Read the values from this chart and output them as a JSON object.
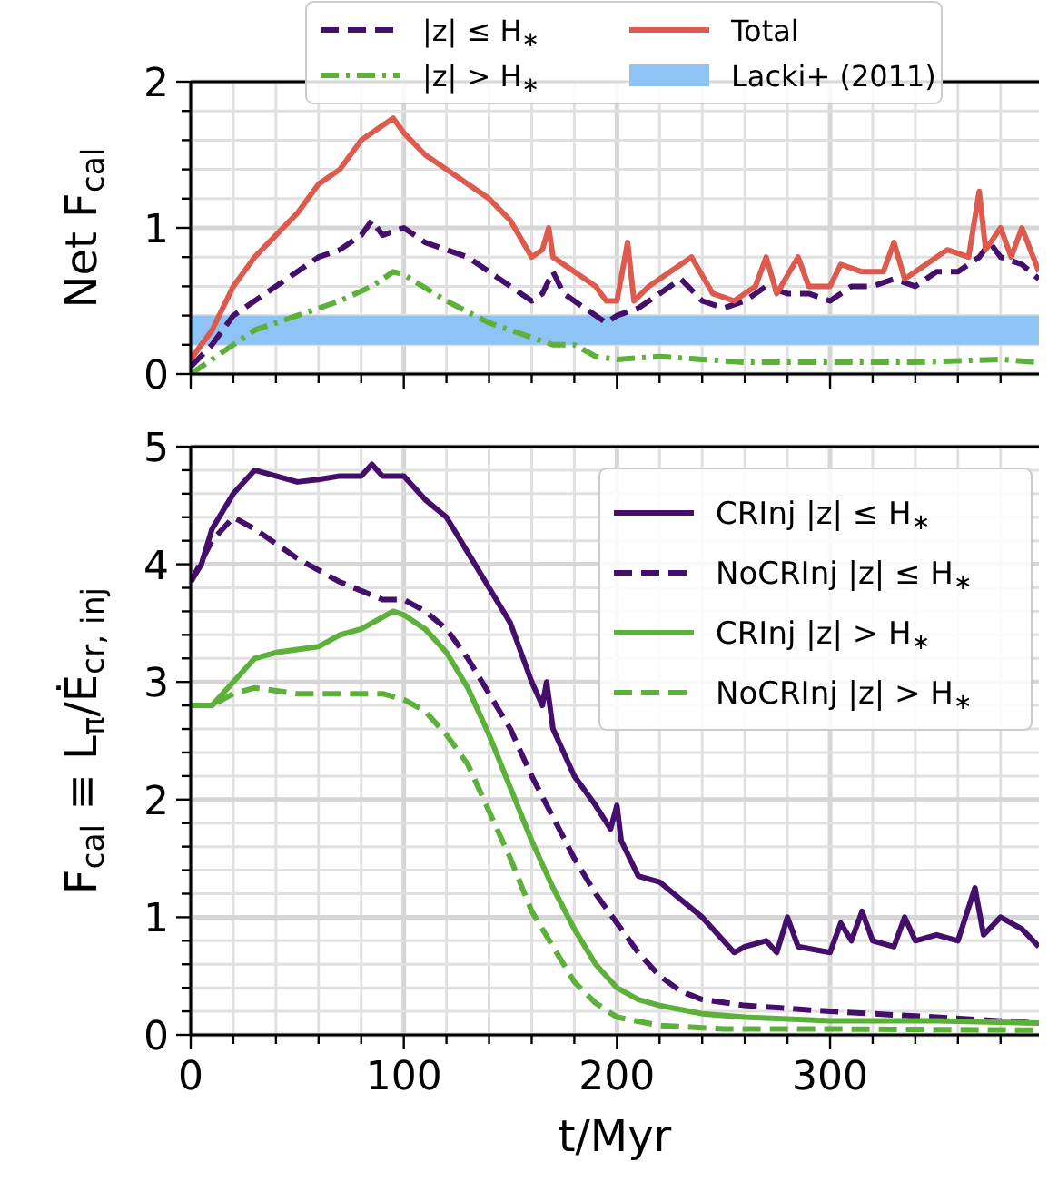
{
  "chart_data": [
    {
      "type": "line",
      "ylabel": "Net F$_{cal}$",
      "xlim": [
        0,
        398
      ],
      "ylim": [
        0,
        2
      ],
      "xticks": [
        0,
        {
          "value": 20,
          "label": null
        },
        {
          "value": 40,
          "label": null
        },
        {
          "value": 60,
          "label": null
        },
        {
          "value": 80,
          "label": null
        },
        100,
        {
          "value": 120,
          "label": null
        },
        {
          "value": 140,
          "label": null
        },
        {
          "value": 160,
          "label": null
        },
        {
          "value": 180,
          "label": null
        },
        200,
        {
          "value": 220,
          "label": null
        },
        {
          "value": 240,
          "label": null
        },
        {
          "value": 260,
          "label": null
        },
        {
          "value": 280,
          "label": null
        },
        300,
        {
          "value": 320,
          "label": null
        },
        {
          "value": 340,
          "label": null
        },
        {
          "value": 360,
          "label": null
        },
        {
          "value": 380,
          "label": null
        }
      ],
      "yticks": [
        0,
        {
          "value": 0.2,
          "label": null
        },
        {
          "value": 0.4,
          "label": null
        },
        {
          "value": 0.6,
          "label": null
        },
        {
          "value": 0.8,
          "label": null
        },
        1,
        {
          "value": 1.2,
          "label": null
        },
        {
          "value": 1.4,
          "label": null
        },
        {
          "value": 1.6,
          "label": null
        },
        {
          "value": 1.8,
          "label": null
        },
        2
      ],
      "tick_labels": "y",
      "grid": true,
      "legend": "top",
      "series": [
        {
          "name": "|z| ≤ H$_{∗}$",
          "color": "#440f6b",
          "line_style": "dashed",
          "x": [
            0,
            10,
            20,
            30,
            50,
            60,
            70,
            80,
            85,
            90,
            100,
            110,
            130,
            150,
            160,
            165,
            170,
            175,
            185,
            195,
            200,
            210,
            220,
            230,
            240,
            250,
            260,
            270,
            280,
            290,
            300,
            310,
            320,
            330,
            340,
            350,
            360,
            370,
            375,
            380,
            390,
            398
          ],
          "values": [
            0.05,
            0.2,
            0.4,
            0.5,
            0.7,
            0.8,
            0.85,
            0.95,
            1.05,
            0.95,
            1.0,
            0.9,
            0.8,
            0.6,
            0.5,
            0.55,
            0.7,
            0.55,
            0.45,
            0.35,
            0.4,
            0.45,
            0.55,
            0.65,
            0.5,
            0.45,
            0.5,
            0.6,
            0.55,
            0.55,
            0.5,
            0.6,
            0.6,
            0.65,
            0.6,
            0.7,
            0.7,
            0.8,
            0.9,
            0.8,
            0.75,
            0.65
          ]
        },
        {
          "name": "|z| > H$_{∗}$",
          "color": "#5db03a",
          "line_style": "dashdot",
          "x": [
            0,
            10,
            20,
            30,
            50,
            70,
            85,
            95,
            100,
            120,
            140,
            160,
            170,
            180,
            190,
            200,
            220,
            240,
            260,
            300,
            340,
            380,
            398
          ],
          "values": [
            0,
            0.1,
            0.2,
            0.3,
            0.4,
            0.5,
            0.6,
            0.7,
            0.68,
            0.5,
            0.35,
            0.25,
            0.2,
            0.2,
            0.12,
            0.1,
            0.12,
            0.1,
            0.08,
            0.08,
            0.08,
            0.1,
            0.08
          ]
        },
        {
          "name": "Total",
          "color": "#dc5a4e",
          "line_style": "solid",
          "x": [
            0,
            10,
            20,
            30,
            40,
            50,
            60,
            70,
            80,
            90,
            95,
            100,
            110,
            120,
            130,
            140,
            150,
            160,
            165,
            168,
            170,
            180,
            190,
            195,
            200,
            205,
            208,
            215,
            225,
            235,
            245,
            255,
            265,
            270,
            275,
            285,
            290,
            300,
            305,
            315,
            325,
            330,
            335,
            345,
            355,
            365,
            370,
            373,
            380,
            385,
            390,
            398
          ],
          "values": [
            0.1,
            0.3,
            0.6,
            0.8,
            0.95,
            1.1,
            1.3,
            1.4,
            1.6,
            1.7,
            1.75,
            1.65,
            1.5,
            1.4,
            1.3,
            1.2,
            1.05,
            0.8,
            0.85,
            1.0,
            0.8,
            0.7,
            0.6,
            0.5,
            0.5,
            0.9,
            0.5,
            0.6,
            0.7,
            0.8,
            0.55,
            0.5,
            0.6,
            0.8,
            0.55,
            0.8,
            0.6,
            0.6,
            0.75,
            0.7,
            0.7,
            0.9,
            0.65,
            0.75,
            0.85,
            0.8,
            1.25,
            0.85,
            1.0,
            0.8,
            1.0,
            0.7
          ]
        }
      ],
      "bands": [
        {
          "axis": "y",
          "from": 0.2,
          "to": 0.4,
          "label": "Lacki+ (2011)",
          "color": "#8ec4f5"
        }
      ]
    },
    {
      "type": "line",
      "xlabel": "t/Myr",
      "ylabel": "F$_{cal}$ ≡ L$_{π}$/Ė$_{cr, inj}$",
      "xlim": [
        0,
        398
      ],
      "ylim": [
        0,
        5
      ],
      "xticks": [
        0,
        {
          "value": 20,
          "label": null
        },
        {
          "value": 40,
          "label": null
        },
        {
          "value": 60,
          "label": null
        },
        {
          "value": 80,
          "label": null
        },
        100,
        {
          "value": 120,
          "label": null
        },
        {
          "value": 140,
          "label": null
        },
        {
          "value": 160,
          "label": null
        },
        {
          "value": 180,
          "label": null
        },
        200,
        {
          "value": 220,
          "label": null
        },
        {
          "value": 240,
          "label": null
        },
        {
          "value": 260,
          "label": null
        },
        {
          "value": 280,
          "label": null
        },
        300,
        {
          "value": 320,
          "label": null
        },
        {
          "value": 340,
          "label": null
        },
        {
          "value": 360,
          "label": null
        },
        {
          "value": 380,
          "label": null
        }
      ],
      "yticks": [
        0,
        {
          "value": 0.2,
          "label": null
        },
        {
          "value": 0.4,
          "label": null
        },
        {
          "value": 0.6,
          "label": null
        },
        {
          "value": 0.8,
          "label": null
        },
        1,
        {
          "value": 1.2,
          "label": null
        },
        {
          "value": 1.4,
          "label": null
        },
        {
          "value": 1.6,
          "label": null
        },
        {
          "value": 1.8,
          "label": null
        },
        2,
        {
          "value": 2.2,
          "label": null
        },
        {
          "value": 2.4,
          "label": null
        },
        {
          "value": 2.6,
          "label": null
        },
        {
          "value": 2.8,
          "label": null
        },
        3,
        {
          "value": 3.2,
          "label": null
        },
        {
          "value": 3.4,
          "label": null
        },
        {
          "value": 3.6,
          "label": null
        },
        {
          "value": 3.8,
          "label": null
        },
        4,
        {
          "value": 4.2,
          "label": null
        },
        {
          "value": 4.4,
          "label": null
        },
        {
          "value": 4.6,
          "label": null
        },
        {
          "value": 4.8,
          "label": null
        },
        5
      ],
      "grid": true,
      "legend": "top right",
      "series": [
        {
          "name": "CRInj |z| ≤ H$_{∗}$",
          "color": "#440f6b",
          "line_style": "solid",
          "x": [
            0,
            5,
            10,
            20,
            30,
            40,
            50,
            60,
            70,
            80,
            85,
            90,
            100,
            110,
            120,
            130,
            140,
            150,
            160,
            165,
            167,
            170,
            180,
            190,
            197,
            200,
            202,
            210,
            220,
            230,
            240,
            250,
            255,
            260,
            270,
            275,
            280,
            285,
            300,
            305,
            310,
            315,
            320,
            330,
            335,
            340,
            350,
            360,
            368,
            372,
            380,
            390,
            398
          ],
          "values": [
            3.85,
            4.0,
            4.3,
            4.6,
            4.8,
            4.75,
            4.7,
            4.72,
            4.75,
            4.75,
            4.85,
            4.75,
            4.75,
            4.55,
            4.4,
            4.1,
            3.8,
            3.5,
            3.0,
            2.8,
            3.0,
            2.6,
            2.2,
            1.95,
            1.75,
            1.95,
            1.65,
            1.35,
            1.3,
            1.15,
            1.0,
            0.8,
            0.7,
            0.75,
            0.8,
            0.7,
            1.0,
            0.75,
            0.7,
            0.95,
            0.8,
            1.05,
            0.8,
            0.75,
            1.0,
            0.8,
            0.85,
            0.8,
            1.25,
            0.85,
            1.0,
            0.9,
            0.75
          ]
        },
        {
          "name": "NoCRInj |z| ≤ H$_{∗}$",
          "color": "#440f6b",
          "line_style": "dashed",
          "x": [
            0,
            10,
            20,
            30,
            50,
            70,
            90,
            100,
            110,
            120,
            130,
            140,
            150,
            160,
            170,
            180,
            190,
            200,
            210,
            220,
            230,
            240,
            260,
            300,
            350,
            398
          ],
          "values": [
            3.85,
            4.2,
            4.4,
            4.3,
            4.05,
            3.85,
            3.7,
            3.7,
            3.6,
            3.45,
            3.2,
            2.9,
            2.6,
            2.2,
            1.85,
            1.5,
            1.2,
            0.95,
            0.7,
            0.5,
            0.37,
            0.3,
            0.25,
            0.2,
            0.15,
            0.1
          ]
        },
        {
          "name": "CRInj |z| > H$_{∗}$",
          "color": "#5db03a",
          "line_style": "solid",
          "x": [
            0,
            10,
            20,
            30,
            40,
            60,
            70,
            80,
            90,
            95,
            100,
            110,
            120,
            130,
            140,
            150,
            160,
            170,
            180,
            190,
            200,
            210,
            220,
            240,
            260,
            300,
            350,
            398
          ],
          "values": [
            2.8,
            2.8,
            3.0,
            3.2,
            3.25,
            3.3,
            3.4,
            3.45,
            3.55,
            3.6,
            3.57,
            3.45,
            3.25,
            2.95,
            2.55,
            2.1,
            1.65,
            1.25,
            0.9,
            0.6,
            0.4,
            0.3,
            0.25,
            0.18,
            0.15,
            0.12,
            0.12,
            0.1
          ]
        },
        {
          "name": "NoCRInj |z| > H$_{∗}$",
          "color": "#5db03a",
          "line_style": "dashed",
          "x": [
            0,
            10,
            20,
            30,
            50,
            70,
            90,
            100,
            110,
            120,
            130,
            140,
            150,
            160,
            170,
            180,
            190,
            200,
            220,
            250,
            300,
            398
          ],
          "values": [
            2.8,
            2.8,
            2.9,
            2.95,
            2.9,
            2.9,
            2.9,
            2.85,
            2.75,
            2.55,
            2.3,
            1.9,
            1.5,
            1.05,
            0.75,
            0.45,
            0.27,
            0.15,
            0.08,
            0.05,
            0.05,
            0.04
          ]
        }
      ]
    }
  ]
}
